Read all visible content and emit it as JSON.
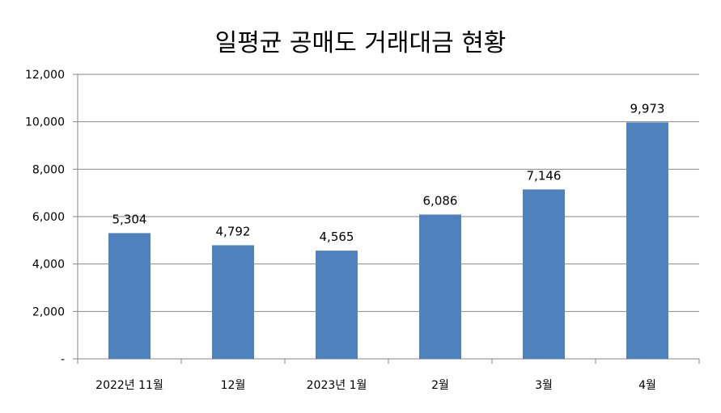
{
  "chart_data": {
    "type": "bar",
    "title": "일평균 공매도 거래대금 현황",
    "categories": [
      "2022년 11월",
      "12월",
      "2023년 1월",
      "2월",
      "3월",
      "4월"
    ],
    "values": [
      5304,
      4792,
      4565,
      6086,
      7146,
      9973
    ],
    "value_labels": [
      "5,304",
      "4,792",
      "4,565",
      "6,086",
      "7,146",
      "9,973"
    ],
    "ylim": [
      0,
      12000
    ],
    "yticks": [
      0,
      2000,
      4000,
      6000,
      8000,
      10000,
      12000
    ],
    "ytick_labels": [
      "-",
      "2,000",
      "4,000",
      "6,000",
      "8,000",
      "10,000",
      "12,000"
    ],
    "xlabel": "",
    "ylabel": "",
    "grid": true,
    "legend": "none",
    "bar_color": "#4F81BD"
  }
}
